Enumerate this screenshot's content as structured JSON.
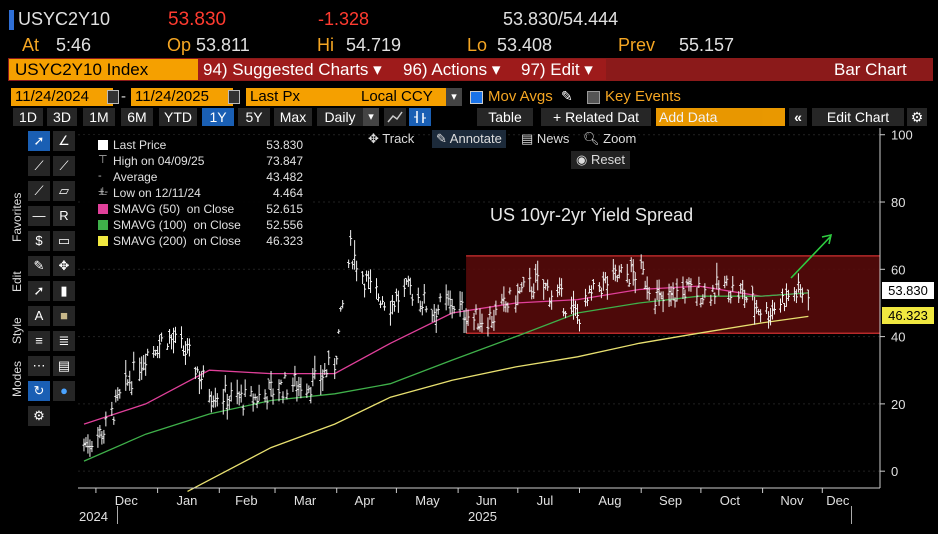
{
  "quote": {
    "ticker": "USYC2Y10",
    "last": "53.830",
    "change": "-1.328",
    "bid_ask": "53.830/54.444",
    "at_label": "At",
    "at_time": "5:46",
    "op_label": "Op",
    "op_value": "53.811",
    "hi_label": "Hi",
    "hi_value": "54.719",
    "lo_label": "Lo",
    "lo_value": "53.408",
    "prev_label": "Prev",
    "prev_value": "55.157"
  },
  "menubar": {
    "index": "USYC2Y10 Index",
    "suggested": "94) Suggested Charts ▾",
    "actions": "96) Actions ▾",
    "edit": "97) Edit ▾",
    "chart_type": "Bar Chart"
  },
  "params": {
    "start_date": "11/24/2024",
    "end_date": "11/24/2025",
    "field": "Last Px",
    "currency": "Local CCY",
    "mov_avgs": "Mov Avgs",
    "key_events": "Key Events"
  },
  "toolbar": {
    "periods": [
      "1D",
      "3D",
      "1M",
      "6M",
      "YTD",
      "1Y",
      "5Y",
      "Max"
    ],
    "active_period": "1Y",
    "frequency": "Daily",
    "table": "Table",
    "related": "+ Related Dat",
    "add_data_placeholder": "Add Data",
    "edit_chart": "Edit Chart"
  },
  "chart_tools": {
    "track": "Track",
    "annotate": "Annotate",
    "news": "News",
    "zoom": "Zoom",
    "reset": "Reset"
  },
  "side_tabs": {
    "favorites": "Favorites",
    "edit": "Edit",
    "style": "Style",
    "modes": "Modes"
  },
  "legend": {
    "last_price_label": "Last Price",
    "last_price": "53.830",
    "high_label": "High on 04/09/25",
    "high": "73.847",
    "avg_label": "Average",
    "avg": "43.482",
    "low_label": "Low on 12/11/24",
    "low": "4.464",
    "sma50_label": "SMAVG (50)  on Close",
    "sma50": "52.615",
    "sma100_label": "SMAVG (100)  on Close",
    "sma100": "52.556",
    "sma200_label": "SMAVG (200)  on Close",
    "sma200": "46.323"
  },
  "colors": {
    "sma50": "#e0409a",
    "sma100": "#3fb04a",
    "sma200": "#e8e070",
    "band_fill": "#5a0b0b",
    "band_line": "#d23030",
    "arrow": "#2ecc40",
    "accent_orange": "#f5a000"
  },
  "chart_data": {
    "type": "line",
    "title": "US 10yr-2yr Yield Spread",
    "ylim": [
      -5,
      102
    ],
    "yticks": [
      "100",
      "80",
      "60",
      "40",
      "20",
      "0"
    ],
    "ytick_values": [
      100,
      80,
      60,
      40,
      20,
      0
    ],
    "xticks": [
      "Dec",
      "Jan",
      "Feb",
      "Mar",
      "Apr",
      "May",
      "Jun",
      "Jul",
      "Aug",
      "Sep",
      "Oct",
      "Nov",
      "Dec"
    ],
    "year_labels": [
      "2024",
      "2025"
    ],
    "last_tag": "53.830",
    "sma200_tag": "46.323",
    "band": {
      "low": 41,
      "high": 64,
      "start": "Jun",
      "end": "Dec"
    },
    "series": [
      {
        "name": "Last Price",
        "x": [
          "2024-11-25",
          "2024-12-05",
          "2024-12-15",
          "2024-12-26",
          "2025-01-06",
          "2025-01-16",
          "2025-01-27",
          "2025-02-06",
          "2025-02-17",
          "2025-02-27",
          "2025-03-10",
          "2025-03-20",
          "2025-03-31",
          "2025-04-08",
          "2025-04-18",
          "2025-04-28",
          "2025-05-08",
          "2025-05-19",
          "2025-05-29",
          "2025-06-09",
          "2025-06-19",
          "2025-06-30",
          "2025-07-10",
          "2025-07-21",
          "2025-07-31",
          "2025-08-11",
          "2025-08-21",
          "2025-09-01",
          "2025-09-11",
          "2025-09-22",
          "2025-10-02",
          "2025-10-13",
          "2025-10-23",
          "2025-11-03",
          "2025-11-13",
          "2025-11-24"
        ],
        "values": [
          8,
          12,
          24,
          35,
          40,
          35,
          24,
          22,
          21,
          24,
          26,
          26,
          32,
          66,
          54,
          50,
          54,
          48,
          50,
          45,
          46,
          52,
          56,
          52,
          46,
          55,
          58,
          59,
          50,
          54,
          53,
          55,
          52,
          47,
          52,
          54
        ]
      },
      {
        "name": "SMAVG (50)",
        "x": [
          "2024-11-25",
          "2024-12-26",
          "2025-01-27",
          "2025-02-27",
          "2025-03-31",
          "2025-04-28",
          "2025-05-29",
          "2025-06-30",
          "2025-07-31",
          "2025-08-31",
          "2025-09-30",
          "2025-10-31",
          "2025-11-24"
        ],
        "values": [
          14,
          20,
          30,
          29,
          29,
          38,
          47,
          50,
          51,
          54,
          55,
          52,
          53
        ]
      },
      {
        "name": "SMAVG (100)",
        "x": [
          "2024-11-25",
          "2024-12-26",
          "2025-01-27",
          "2025-02-27",
          "2025-03-31",
          "2025-04-28",
          "2025-05-29",
          "2025-06-30",
          "2025-07-31",
          "2025-08-31",
          "2025-09-30",
          "2025-10-31",
          "2025-11-24"
        ],
        "values": [
          3,
          11,
          17,
          21,
          23,
          26,
          33,
          40,
          47,
          50,
          52,
          52,
          53
        ]
      },
      {
        "name": "SMAVG (200)",
        "x": [
          "2025-01-16",
          "2025-02-27",
          "2025-03-31",
          "2025-04-28",
          "2025-05-29",
          "2025-06-30",
          "2025-07-31",
          "2025-08-31",
          "2025-09-30",
          "2025-10-31",
          "2025-11-24"
        ],
        "values": [
          -6,
          7,
          14,
          22,
          27,
          31,
          34,
          38,
          41,
          44,
          46
        ]
      }
    ]
  }
}
